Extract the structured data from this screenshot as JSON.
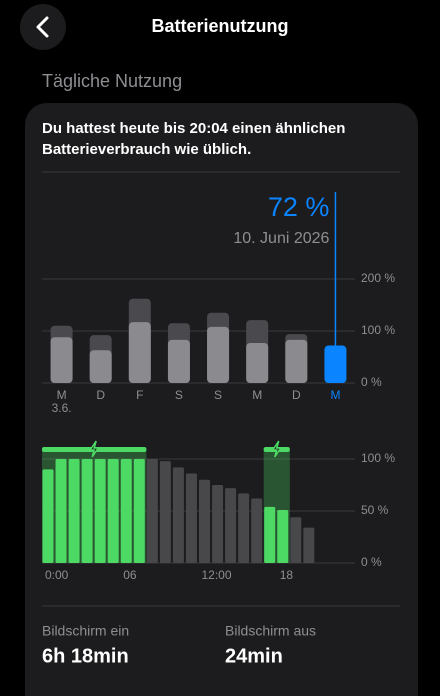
{
  "header": {
    "title": "Batterienutzung"
  },
  "section_title": "Tägliche Nutzung",
  "summary": "Du hattest heute bis 20:04 einen ähnlichen Batterieverbrauch wie üblich.",
  "charts": [
    {
      "type": "bar",
      "categories": [
        "M",
        "D",
        "F",
        "S",
        "S",
        "M",
        "D",
        "M"
      ],
      "category_sublabels": [
        "3.6.",
        null,
        null,
        null,
        null,
        null,
        null,
        null
      ],
      "series": [
        {
          "color": "#4a4a4e",
          "values": [
            110,
            92,
            162,
            115,
            135,
            121,
            94,
            null
          ]
        },
        {
          "color": "#8a8a8f",
          "values": [
            88,
            63,
            117,
            83,
            108,
            77,
            83,
            72
          ],
          "value_labels": [
            null,
            null,
            null,
            null,
            null,
            null,
            null,
            "72 %"
          ],
          "highlight_color": "#0a84ff"
        }
      ],
      "selected_date": "10. Juni 2026",
      "ylim": [
        0,
        200
      ],
      "yticks": [
        {
          "value": 0,
          "label": "0 %"
        },
        {
          "value": 100,
          "label": "100 %"
        },
        {
          "value": 200,
          "label": "200 %"
        }
      ],
      "grid": true
    },
    {
      "type": "bar",
      "x": [
        0,
        1,
        2,
        3,
        4,
        5,
        6,
        7,
        8,
        9,
        10,
        11,
        12,
        13,
        14,
        15,
        16,
        17,
        18,
        19,
        20
      ],
      "values": [
        90,
        100,
        100,
        100,
        100,
        100,
        100,
        100,
        100,
        98,
        92,
        86,
        80,
        75,
        72,
        67,
        62,
        54,
        51,
        44,
        34
      ],
      "color": "#48484a",
      "charging_color": "#4cd964",
      "charging_periods": [
        [
          0,
          8
        ],
        [
          17,
          19
        ]
      ],
      "xlim": [
        0,
        24
      ],
      "xticks": [
        {
          "value": 0,
          "label": "0:00"
        },
        {
          "value": 6,
          "label": "06"
        },
        {
          "value": 12,
          "label": "12:00"
        },
        {
          "value": 18,
          "label": "18"
        }
      ],
      "ylim": [
        0,
        100
      ],
      "yticks": [
        {
          "value": 0,
          "label": "0 %"
        },
        {
          "value": 50,
          "label": "50 %"
        },
        {
          "value": 100,
          "label": "100 %"
        }
      ],
      "grid": true
    }
  ],
  "screen_time": [
    {
      "label": "Bildschirm ein",
      "value": "6h 18min"
    },
    {
      "label": "Bildschirm aus",
      "value": "24min"
    }
  ]
}
